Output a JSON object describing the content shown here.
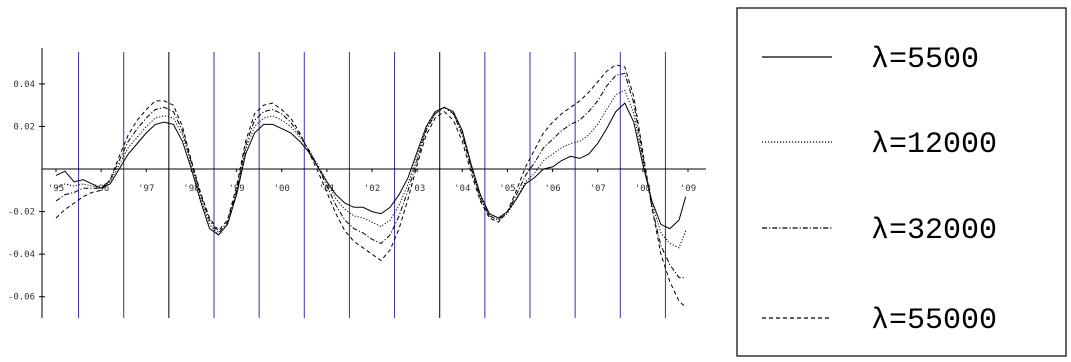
{
  "chart_data": {
    "type": "line",
    "xlim": [
      1995,
      2009
    ],
    "ylim": [
      -0.07,
      0.055
    ],
    "x_ticks": [
      1995,
      1996,
      1997,
      1998,
      1999,
      2000,
      2001,
      2002,
      2003,
      2004,
      2005,
      2006,
      2007,
      2008,
      2009
    ],
    "x_tick_labels": [
      "95",
      "96",
      "97",
      "98",
      "99",
      "00",
      "01",
      "02",
      "03",
      "04",
      "05",
      "06",
      "07",
      "08",
      "09"
    ],
    "y_ticks": [
      -0.06,
      -0.04,
      -0.02,
      0.02,
      0.04
    ],
    "y_tick_labels": [
      "-0.06",
      "-0.04",
      "-0.02",
      "0.02",
      "0.04"
    ],
    "vertical_lines": [
      1995.5,
      1996.5,
      1997.5,
      1998.5,
      1999.5,
      2000.5,
      2001.5,
      2002.5,
      2003.5,
      2004.5,
      2005.5,
      2006.5,
      2007.5,
      2008.5
    ],
    "vertical_line_colors": [
      "#3333aa",
      "#3333aa",
      "#000000",
      "#3333aa",
      "#3333aa",
      "#3333aa",
      "#3333aa",
      "#3333aa",
      "#000000",
      "#3333aa",
      "#3333aa",
      "#3333aa",
      "#3333aa",
      "#3333aa"
    ],
    "legend_position": "right",
    "series": [
      {
        "name": "λ=5500",
        "dash": "solid",
        "x": [
          1995.0,
          1995.2,
          1995.4,
          1995.6,
          1995.8,
          1996.0,
          1996.2,
          1996.4,
          1996.6,
          1996.8,
          1997.0,
          1997.2,
          1997.4,
          1997.6,
          1997.8,
          1998.0,
          1998.2,
          1998.4,
          1998.6,
          1998.8,
          1999.0,
          1999.2,
          1999.4,
          1999.6,
          1999.8,
          2000.0,
          2000.2,
          2000.4,
          2000.6,
          2000.8,
          2001.0,
          2001.2,
          2001.4,
          2001.6,
          2001.8,
          2002.0,
          2002.2,
          2002.4,
          2002.6,
          2002.8,
          2003.0,
          2003.2,
          2003.4,
          2003.6,
          2003.8,
          2004.0,
          2004.2,
          2004.4,
          2004.6,
          2004.8,
          2005.0,
          2005.2,
          2005.4,
          2005.6,
          2005.8,
          2006.0,
          2006.2,
          2006.4,
          2006.6,
          2006.8,
          2007.0,
          2007.2,
          2007.4,
          2007.6,
          2007.8,
          2008.0,
          2008.2,
          2008.4,
          2008.6,
          2008.8,
          2008.95
        ],
        "y": [
          -0.003,
          -0.001,
          -0.006,
          -0.005,
          -0.007,
          -0.009,
          -0.007,
          0.0,
          0.007,
          0.012,
          0.017,
          0.021,
          0.022,
          0.021,
          0.013,
          0.0,
          -0.015,
          -0.028,
          -0.031,
          -0.026,
          -0.012,
          0.007,
          0.017,
          0.021,
          0.021,
          0.019,
          0.017,
          0.013,
          0.008,
          0.001,
          -0.006,
          -0.012,
          -0.016,
          -0.018,
          -0.018,
          -0.02,
          -0.021,
          -0.018,
          -0.012,
          -0.004,
          0.008,
          0.02,
          0.027,
          0.029,
          0.027,
          0.018,
          0.002,
          -0.012,
          -0.021,
          -0.023,
          -0.02,
          -0.014,
          -0.007,
          -0.004,
          0.0,
          0.001,
          0.004,
          0.006,
          0.005,
          0.007,
          0.012,
          0.019,
          0.027,
          0.031,
          0.022,
          0.002,
          -0.015,
          -0.026,
          -0.028,
          -0.024,
          -0.013
        ]
      },
      {
        "name": "λ=12000",
        "dash": "dotted",
        "x": [
          1995.0,
          1995.2,
          1995.4,
          1995.6,
          1995.8,
          1996.0,
          1996.2,
          1996.4,
          1996.6,
          1996.8,
          1997.0,
          1997.2,
          1997.4,
          1997.6,
          1997.8,
          1998.0,
          1998.2,
          1998.4,
          1998.6,
          1998.8,
          1999.0,
          1999.2,
          1999.4,
          1999.6,
          1999.8,
          2000.0,
          2000.2,
          2000.4,
          2000.6,
          2000.8,
          2001.0,
          2001.2,
          2001.4,
          2001.6,
          2001.8,
          2002.0,
          2002.2,
          2002.4,
          2002.6,
          2002.8,
          2003.0,
          2003.2,
          2003.4,
          2003.6,
          2003.8,
          2004.0,
          2004.2,
          2004.4,
          2004.6,
          2004.8,
          2005.0,
          2005.2,
          2005.4,
          2005.6,
          2005.8,
          2006.0,
          2006.2,
          2006.4,
          2006.6,
          2006.8,
          2007.0,
          2007.2,
          2007.4,
          2007.6,
          2007.8,
          2008.0,
          2008.2,
          2008.4,
          2008.6,
          2008.8,
          2008.95
        ],
        "y": [
          -0.009,
          -0.007,
          -0.008,
          -0.007,
          -0.008,
          -0.009,
          -0.006,
          0.002,
          0.01,
          0.015,
          0.02,
          0.024,
          0.025,
          0.024,
          0.016,
          0.002,
          -0.013,
          -0.026,
          -0.031,
          -0.026,
          -0.011,
          0.009,
          0.02,
          0.024,
          0.025,
          0.023,
          0.02,
          0.015,
          0.009,
          0.002,
          -0.006,
          -0.014,
          -0.019,
          -0.022,
          -0.023,
          -0.025,
          -0.027,
          -0.024,
          -0.017,
          -0.007,
          0.006,
          0.019,
          0.026,
          0.029,
          0.026,
          0.017,
          0.001,
          -0.013,
          -0.022,
          -0.024,
          -0.021,
          -0.014,
          -0.006,
          -0.002,
          0.004,
          0.007,
          0.01,
          0.012,
          0.013,
          0.016,
          0.021,
          0.028,
          0.035,
          0.037,
          0.026,
          0.004,
          -0.016,
          -0.03,
          -0.035,
          -0.037,
          -0.029
        ]
      },
      {
        "name": "λ=32000",
        "dash": "dashdot",
        "x": [
          1995.0,
          1995.2,
          1995.4,
          1995.6,
          1995.8,
          1996.0,
          1996.2,
          1996.4,
          1996.6,
          1996.8,
          1997.0,
          1997.2,
          1997.4,
          1997.6,
          1997.8,
          1998.0,
          1998.2,
          1998.4,
          1998.6,
          1998.8,
          1999.0,
          1999.2,
          1999.4,
          1999.6,
          1999.8,
          2000.0,
          2000.2,
          2000.4,
          2000.6,
          2000.8,
          2001.0,
          2001.2,
          2001.4,
          2001.6,
          2001.8,
          2002.0,
          2002.2,
          2002.4,
          2002.6,
          2002.8,
          2003.0,
          2003.2,
          2003.4,
          2003.6,
          2003.8,
          2004.0,
          2004.2,
          2004.4,
          2004.6,
          2004.8,
          2005.0,
          2005.2,
          2005.4,
          2005.6,
          2005.8,
          2006.0,
          2006.2,
          2006.4,
          2006.6,
          2006.8,
          2007.0,
          2007.2,
          2007.4,
          2007.6,
          2007.8,
          2008.0,
          2008.2,
          2008.4,
          2008.6,
          2008.8,
          2008.95
        ],
        "y": [
          -0.015,
          -0.012,
          -0.011,
          -0.009,
          -0.009,
          -0.009,
          -0.005,
          0.004,
          0.013,
          0.019,
          0.024,
          0.028,
          0.029,
          0.027,
          0.018,
          0.003,
          -0.012,
          -0.024,
          -0.03,
          -0.025,
          -0.01,
          0.011,
          0.023,
          0.027,
          0.028,
          0.026,
          0.022,
          0.016,
          0.009,
          0.001,
          -0.008,
          -0.017,
          -0.024,
          -0.028,
          -0.03,
          -0.033,
          -0.035,
          -0.031,
          -0.022,
          -0.01,
          0.004,
          0.018,
          0.026,
          0.029,
          0.026,
          0.016,
          0.0,
          -0.014,
          -0.022,
          -0.024,
          -0.02,
          -0.012,
          -0.003,
          0.003,
          0.01,
          0.014,
          0.018,
          0.021,
          0.023,
          0.027,
          0.032,
          0.039,
          0.044,
          0.045,
          0.031,
          0.006,
          -0.018,
          -0.036,
          -0.045,
          -0.051,
          -0.051
        ]
      },
      {
        "name": "λ=55000",
        "dash": "dashed",
        "x": [
          1995.0,
          1995.2,
          1995.4,
          1995.6,
          1995.8,
          1996.0,
          1996.2,
          1996.4,
          1996.6,
          1996.8,
          1997.0,
          1997.2,
          1997.4,
          1997.6,
          1997.8,
          1998.0,
          1998.2,
          1998.4,
          1998.6,
          1998.8,
          1999.0,
          1999.2,
          1999.4,
          1999.6,
          1999.8,
          2000.0,
          2000.2,
          2000.4,
          2000.6,
          2000.8,
          2001.0,
          2001.2,
          2001.4,
          2001.6,
          2001.8,
          2002.0,
          2002.2,
          2002.4,
          2002.6,
          2002.8,
          2003.0,
          2003.2,
          2003.4,
          2003.6,
          2003.8,
          2004.0,
          2004.2,
          2004.4,
          2004.6,
          2004.8,
          2005.0,
          2005.2,
          2005.4,
          2005.6,
          2005.8,
          2006.0,
          2006.2,
          2006.4,
          2006.6,
          2006.8,
          2007.0,
          2007.2,
          2007.4,
          2007.6,
          2007.8,
          2008.0,
          2008.2,
          2008.4,
          2008.6,
          2008.8,
          2008.95
        ],
        "y": [
          -0.023,
          -0.019,
          -0.016,
          -0.013,
          -0.011,
          -0.01,
          -0.005,
          0.006,
          0.016,
          0.023,
          0.028,
          0.032,
          0.032,
          0.03,
          0.02,
          0.004,
          -0.011,
          -0.023,
          -0.029,
          -0.024,
          -0.008,
          0.013,
          0.026,
          0.03,
          0.031,
          0.028,
          0.024,
          0.017,
          0.008,
          -0.001,
          -0.011,
          -0.021,
          -0.029,
          -0.034,
          -0.037,
          -0.04,
          -0.043,
          -0.038,
          -0.028,
          -0.014,
          0.002,
          0.016,
          0.024,
          0.027,
          0.023,
          0.013,
          -0.002,
          -0.015,
          -0.023,
          -0.025,
          -0.02,
          -0.01,
          0.001,
          0.009,
          0.017,
          0.022,
          0.026,
          0.029,
          0.032,
          0.036,
          0.041,
          0.046,
          0.049,
          0.048,
          0.034,
          0.008,
          -0.018,
          -0.04,
          -0.053,
          -0.062,
          -0.065
        ]
      }
    ]
  }
}
